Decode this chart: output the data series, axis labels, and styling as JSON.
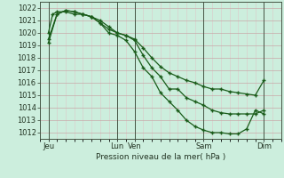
{
  "background_color": "#cceedd",
  "grid_color_major": "#c8a8a8",
  "grid_color_minor": "#ddc8c8",
  "line_color": "#1a5c1a",
  "xlabel": "Pression niveau de la mer( hPa )",
  "ylim": [
    1011.5,
    1022.5
  ],
  "yticks": [
    1012,
    1013,
    1014,
    1015,
    1016,
    1017,
    1018,
    1019,
    1020,
    1021,
    1022
  ],
  "xlim": [
    0,
    28
  ],
  "xtick_positions": [
    1,
    9,
    11,
    19,
    26
  ],
  "xtick_labels": [
    "Jeu",
    "Lun",
    "Ven",
    "Sam",
    "Dim"
  ],
  "vlines": [
    1,
    9,
    11,
    19,
    26
  ],
  "line1_x": [
    1,
    1.5,
    2,
    3,
    4,
    5,
    6,
    7,
    8,
    9,
    10,
    11,
    12,
    13,
    14,
    15,
    16,
    17,
    18,
    19,
    20,
    21,
    22,
    23,
    24,
    25,
    26
  ],
  "line1_y": [
    1020.0,
    1021.5,
    1021.7,
    1021.7,
    1021.5,
    1021.5,
    1021.3,
    1020.8,
    1020.3,
    1020.0,
    1019.8,
    1019.5,
    1018.8,
    1018.0,
    1017.3,
    1016.8,
    1016.5,
    1016.2,
    1016.0,
    1015.7,
    1015.5,
    1015.5,
    1015.3,
    1015.2,
    1015.1,
    1015.0,
    1016.2
  ],
  "line2_x": [
    1,
    2,
    3,
    4,
    5,
    6,
    7,
    8,
    9,
    10,
    11,
    12,
    13,
    14,
    15,
    16,
    17,
    18,
    19,
    20,
    21,
    22,
    23,
    24,
    25,
    26
  ],
  "line2_y": [
    1019.5,
    1021.5,
    1021.8,
    1021.7,
    1021.5,
    1021.3,
    1021.0,
    1020.5,
    1020.0,
    1019.8,
    1019.4,
    1018.2,
    1017.2,
    1016.5,
    1015.5,
    1015.5,
    1014.8,
    1014.5,
    1014.2,
    1013.8,
    1013.6,
    1013.5,
    1013.5,
    1013.5,
    1013.5,
    1013.8
  ],
  "line3_x": [
    1,
    2,
    3,
    4,
    5,
    6,
    7,
    8,
    9,
    10,
    11,
    12,
    13,
    14,
    15,
    16,
    17,
    18,
    19,
    20,
    21,
    22,
    23,
    24,
    25,
    26
  ],
  "line3_y": [
    1019.2,
    1021.5,
    1021.8,
    1021.7,
    1021.5,
    1021.3,
    1020.8,
    1020.0,
    1019.8,
    1019.4,
    1018.5,
    1017.2,
    1016.5,
    1015.2,
    1014.5,
    1013.8,
    1013.0,
    1012.5,
    1012.2,
    1012.0,
    1012.0,
    1011.9,
    1011.9,
    1012.3,
    1013.8,
    1013.5
  ],
  "figsize": [
    3.2,
    2.0
  ],
  "dpi": 100
}
